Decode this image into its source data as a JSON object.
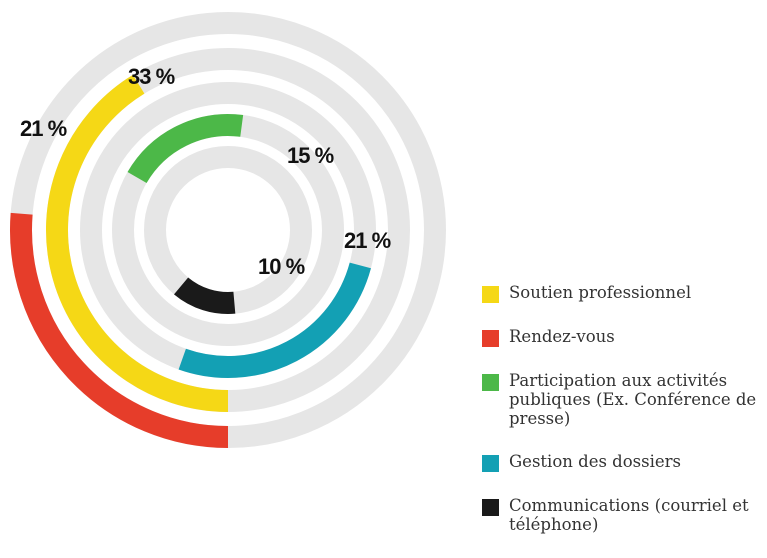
{
  "chart_data": {
    "type": "radial_bar",
    "series": [
      {
        "name": "Soutien professionnel",
        "color": "#f5d816",
        "values": [
          33
        ],
        "value_labels": [
          "33 %"
        ]
      },
      {
        "name": "Rendez-vous",
        "color": "#e63d2a",
        "values": [
          21
        ],
        "value_labels": [
          "21 %"
        ]
      },
      {
        "name": "Participation aux activités publiques (Ex. Conférence de presse)",
        "color": "#4cb848",
        "values": [
          15
        ],
        "value_labels": [
          "15 %"
        ]
      },
      {
        "name": "Gestion des dossiers",
        "color": "#13a0b4",
        "values": [
          21
        ],
        "value_labels": [
          "21 %"
        ]
      },
      {
        "name": "Communications (courriel et téléphone)",
        "color": "#1a1a1a",
        "values": [
          10
        ],
        "value_labels": [
          "10 %"
        ]
      }
    ]
  }
}
